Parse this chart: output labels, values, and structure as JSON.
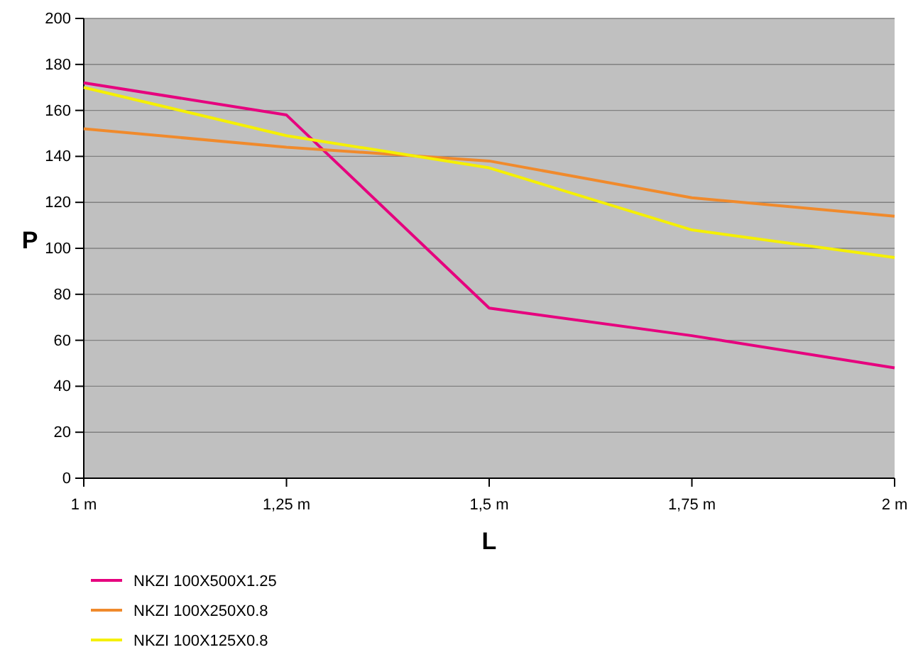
{
  "chart_data": {
    "type": "line",
    "xlabel": "L",
    "ylabel": "P",
    "x": [
      1,
      1.25,
      1.5,
      1.75,
      2
    ],
    "xlim": [
      1,
      2
    ],
    "xticks": [
      {
        "value": 1,
        "label": "1 m"
      },
      {
        "value": 1.25,
        "label": "1,25 m"
      },
      {
        "value": 1.5,
        "label": "1,5 m"
      },
      {
        "value": 1.75,
        "label": "1,75 m"
      },
      {
        "value": 2,
        "label": "2 m"
      }
    ],
    "ylim": [
      0,
      200
    ],
    "yticks": [
      0,
      20,
      40,
      60,
      80,
      100,
      120,
      140,
      160,
      180,
      200
    ],
    "grid": "y",
    "legend": "bottom",
    "marker": "none",
    "series": [
      {
        "name": "NKZI 100X500X1.25",
        "color": "#e6007e",
        "values": [
          172,
          158,
          74,
          62,
          48
        ]
      },
      {
        "name": "NKZI 100X250X0.8",
        "color": "#f08a2c",
        "values": [
          152,
          144,
          138,
          122,
          114
        ]
      },
      {
        "name": "NKZI 100X125X0.8",
        "color": "#f5f000",
        "values": [
          170,
          149,
          135,
          108,
          96
        ]
      }
    ]
  }
}
